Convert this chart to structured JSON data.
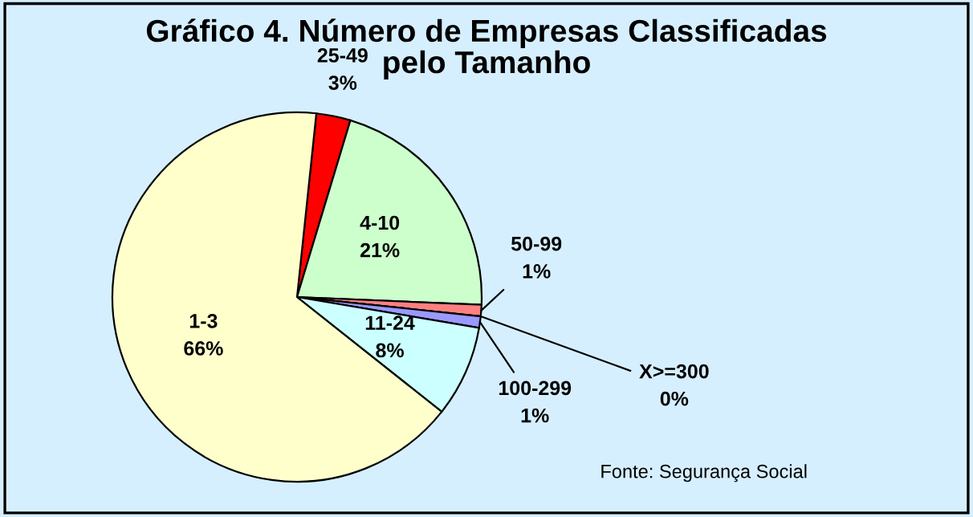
{
  "chart_data": {
    "type": "pie",
    "title": "Gráfico 4. Número de Empresas Classificadas\npelo Tamanho",
    "categories": [
      "25-49",
      "4-10",
      "50-99",
      "X>=300",
      "100-299",
      "11-24",
      "1-3"
    ],
    "values": [
      3,
      21,
      1,
      0,
      1,
      8,
      66
    ],
    "value_labels": [
      "3%",
      "21%",
      "1%",
      "0%",
      "1%",
      "8%",
      "66%"
    ],
    "colors": [
      "#ff0000",
      "#ccffcc",
      "#ff8080",
      "#ffff99",
      "#9999ff",
      "#ccffff",
      "#ffffcc"
    ],
    "annotations": [
      "Fonte: Segurança Social"
    ]
  }
}
